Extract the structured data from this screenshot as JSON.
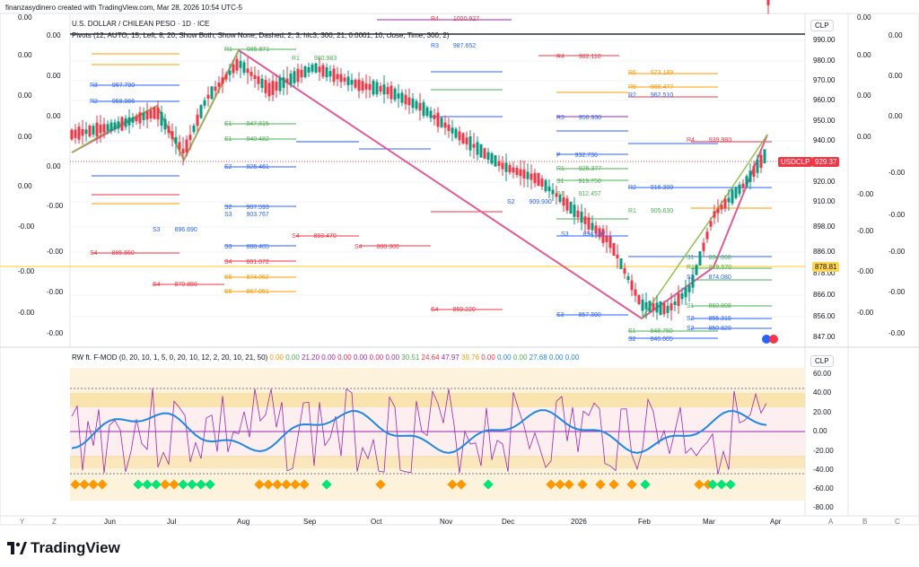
{
  "header": {
    "creator": "finanzasydinero created with TradingView.com, Mar 28, 2026 10:54 UTC-5"
  },
  "main_chart": {
    "legend_symbol": "U.S. DOLLAR / CHILEAN PESO · 1D · ICE",
    "legend_pivots": "Pivots (12, AUTO, 15, Left, 8, 20, Show Both, Show None, Dashed, 2, 3, hlc3, 300, 21, 0.0001, 10, close, Time, 300, 2)",
    "currency_box": "CLP",
    "symbol_tag": "USDCLP",
    "last_price": "929.37",
    "crosshair_price": "878.81",
    "price_ticks": [
      "990.00",
      "980.00",
      "970.00",
      "960.00",
      "950.00",
      "940.00",
      "920.00",
      "910.00",
      "898.00",
      "886.00",
      "878.00",
      "866.00",
      "856.00",
      "847.00"
    ],
    "left_values": [
      "0.00",
      "0.00",
      "0.00",
      "0.00",
      "0.00",
      "0.00",
      "0.00",
      "0.00",
      "0.00",
      "-0.00",
      "-0.00",
      "-0.00",
      "-0.00",
      "-0.00",
      "-0.00",
      "-0.00"
    ],
    "right_values": [
      "0.00",
      "0.00",
      "0.00",
      "0.00",
      "0.00",
      "0.00",
      "0.00",
      "-0.00",
      "-0.00",
      "-0.00",
      "-0.00",
      "-0.00",
      "-0.00",
      "-0.00",
      "-0.00",
      "-0.00"
    ],
    "pivot_labels": [
      {
        "t": "R4",
        "v": "1000.927"
      },
      {
        "t": "R3",
        "v": "987.652"
      },
      {
        "t": "R4",
        "v": "982.110"
      },
      {
        "t": "R6",
        "v": "973.189"
      },
      {
        "t": "R5",
        "v": "966.477"
      },
      {
        "t": "R2",
        "v": "962.510"
      },
      {
        "t": "R3",
        "v": "950.930"
      },
      {
        "t": "R4",
        "v": "939.980"
      },
      {
        "t": "P",
        "v": "932.736"
      },
      {
        "t": "R1",
        "v": "925.377"
      },
      {
        "t": "S1",
        "v": "919.750"
      },
      {
        "t": "R2",
        "v": "916.309"
      },
      {
        "t": "S1",
        "v": "912.457"
      },
      {
        "t": "S2",
        "v": "909.930"
      },
      {
        "t": "R1",
        "v": "905.630"
      },
      {
        "t": "S3",
        "v": "894.197"
      },
      {
        "t": "S4",
        "v": "888.300"
      },
      {
        "t": "S4",
        "v": "893.470"
      },
      {
        "t": "S3",
        "v": "888.405"
      },
      {
        "t": "S4",
        "v": "881.072"
      },
      {
        "t": "S5",
        "v": "874.062"
      },
      {
        "t": "S4",
        "v": "870.850"
      },
      {
        "t": "S6",
        "v": "867.051"
      },
      {
        "t": "S4",
        "v": "885.650"
      },
      {
        "t": "S4",
        "v": "859.220"
      },
      {
        "t": "S2",
        "v": "855.319"
      },
      {
        "t": "S2",
        "v": "850.820"
      },
      {
        "t": "S1",
        "v": "848.750"
      },
      {
        "t": "S2",
        "v": "846.005"
      },
      {
        "t": "S3",
        "v": "857.390"
      },
      {
        "t": "R1",
        "v": "980.983"
      },
      {
        "t": "S1",
        "v": "947.815"
      },
      {
        "t": "S1",
        "v": "940.482"
      },
      {
        "t": "S2",
        "v": "926.461"
      },
      {
        "t": "S2",
        "v": "907.593"
      },
      {
        "t": "S3",
        "v": "903.767"
      },
      {
        "t": "S3",
        "v": "896.690"
      },
      {
        "t": "R1",
        "v": "985.871"
      },
      {
        "t": "R2",
        "v": "958.966"
      },
      {
        "t": "R3",
        "v": "967.790"
      },
      {
        "t": "S2",
        "v": "874.080"
      },
      {
        "t": "S1",
        "v": "860.808"
      },
      {
        "t": "S1",
        "v": "884.068"
      },
      {
        "t": "R1",
        "v": "879.570"
      }
    ]
  },
  "time_axis": {
    "months": [
      "Jun",
      "Jul",
      "Aug",
      "Sep",
      "Oct",
      "Nov",
      "Dec",
      "2026",
      "Feb",
      "Mar",
      "Apr"
    ],
    "corner_left": [
      "Y",
      "Z"
    ],
    "corner_right": [
      "A",
      "B",
      "C"
    ]
  },
  "oscillator": {
    "legend": "RW ft. F-MOD (0, 20, 10, 1, 5, 0, 20, 10, 12, 2, 20, 10, 21, 50)",
    "legend_values": [
      {
        "v": "0.00",
        "c": "#ff9800"
      },
      {
        "v": "0.00",
        "c": "#4caf50"
      },
      {
        "v": "21.20",
        "c": "#9c27b0"
      },
      {
        "v": "0.00",
        "c": "#9c27b0"
      },
      {
        "v": "0.00",
        "c": "#e91e63"
      },
      {
        "v": "0.00",
        "c": "#9c27b0"
      },
      {
        "v": "0.00",
        "c": "#e91e63"
      },
      {
        "v": "0.00",
        "c": "#9c27b0"
      },
      {
        "v": "30.51",
        "c": "#4caf50"
      },
      {
        "v": "24.64",
        "c": "#f23645"
      },
      {
        "v": "47.97",
        "c": "#9c27b0"
      },
      {
        "v": "39.76",
        "c": "#ff9800"
      },
      {
        "v": "0.00",
        "c": "#f23645"
      },
      {
        "v": "0.00",
        "c": "#1e88e5"
      },
      {
        "v": "0.00",
        "c": "#4caf50"
      },
      {
        "v": "27.68",
        "c": "#1e88e5"
      },
      {
        "v": "0.00",
        "c": "#1e88e5"
      },
      {
        "v": "0.00",
        "c": "#1e88e5"
      }
    ],
    "currency_box": "CLP",
    "ticks": [
      "60.00",
      "40.00",
      "20.00",
      "0.00",
      "-20.00",
      "-40.00",
      "-60.00",
      "-80.00"
    ]
  },
  "brand": {
    "name": "TradingView"
  },
  "colors": {
    "up": "#089981",
    "down": "#f23645",
    "pivot_blue": "#2962ff",
    "pivot_red": "#f23645",
    "pivot_green": "#4caf50",
    "pivot_orange": "#ff9800",
    "trend": "#e05c96"
  }
}
